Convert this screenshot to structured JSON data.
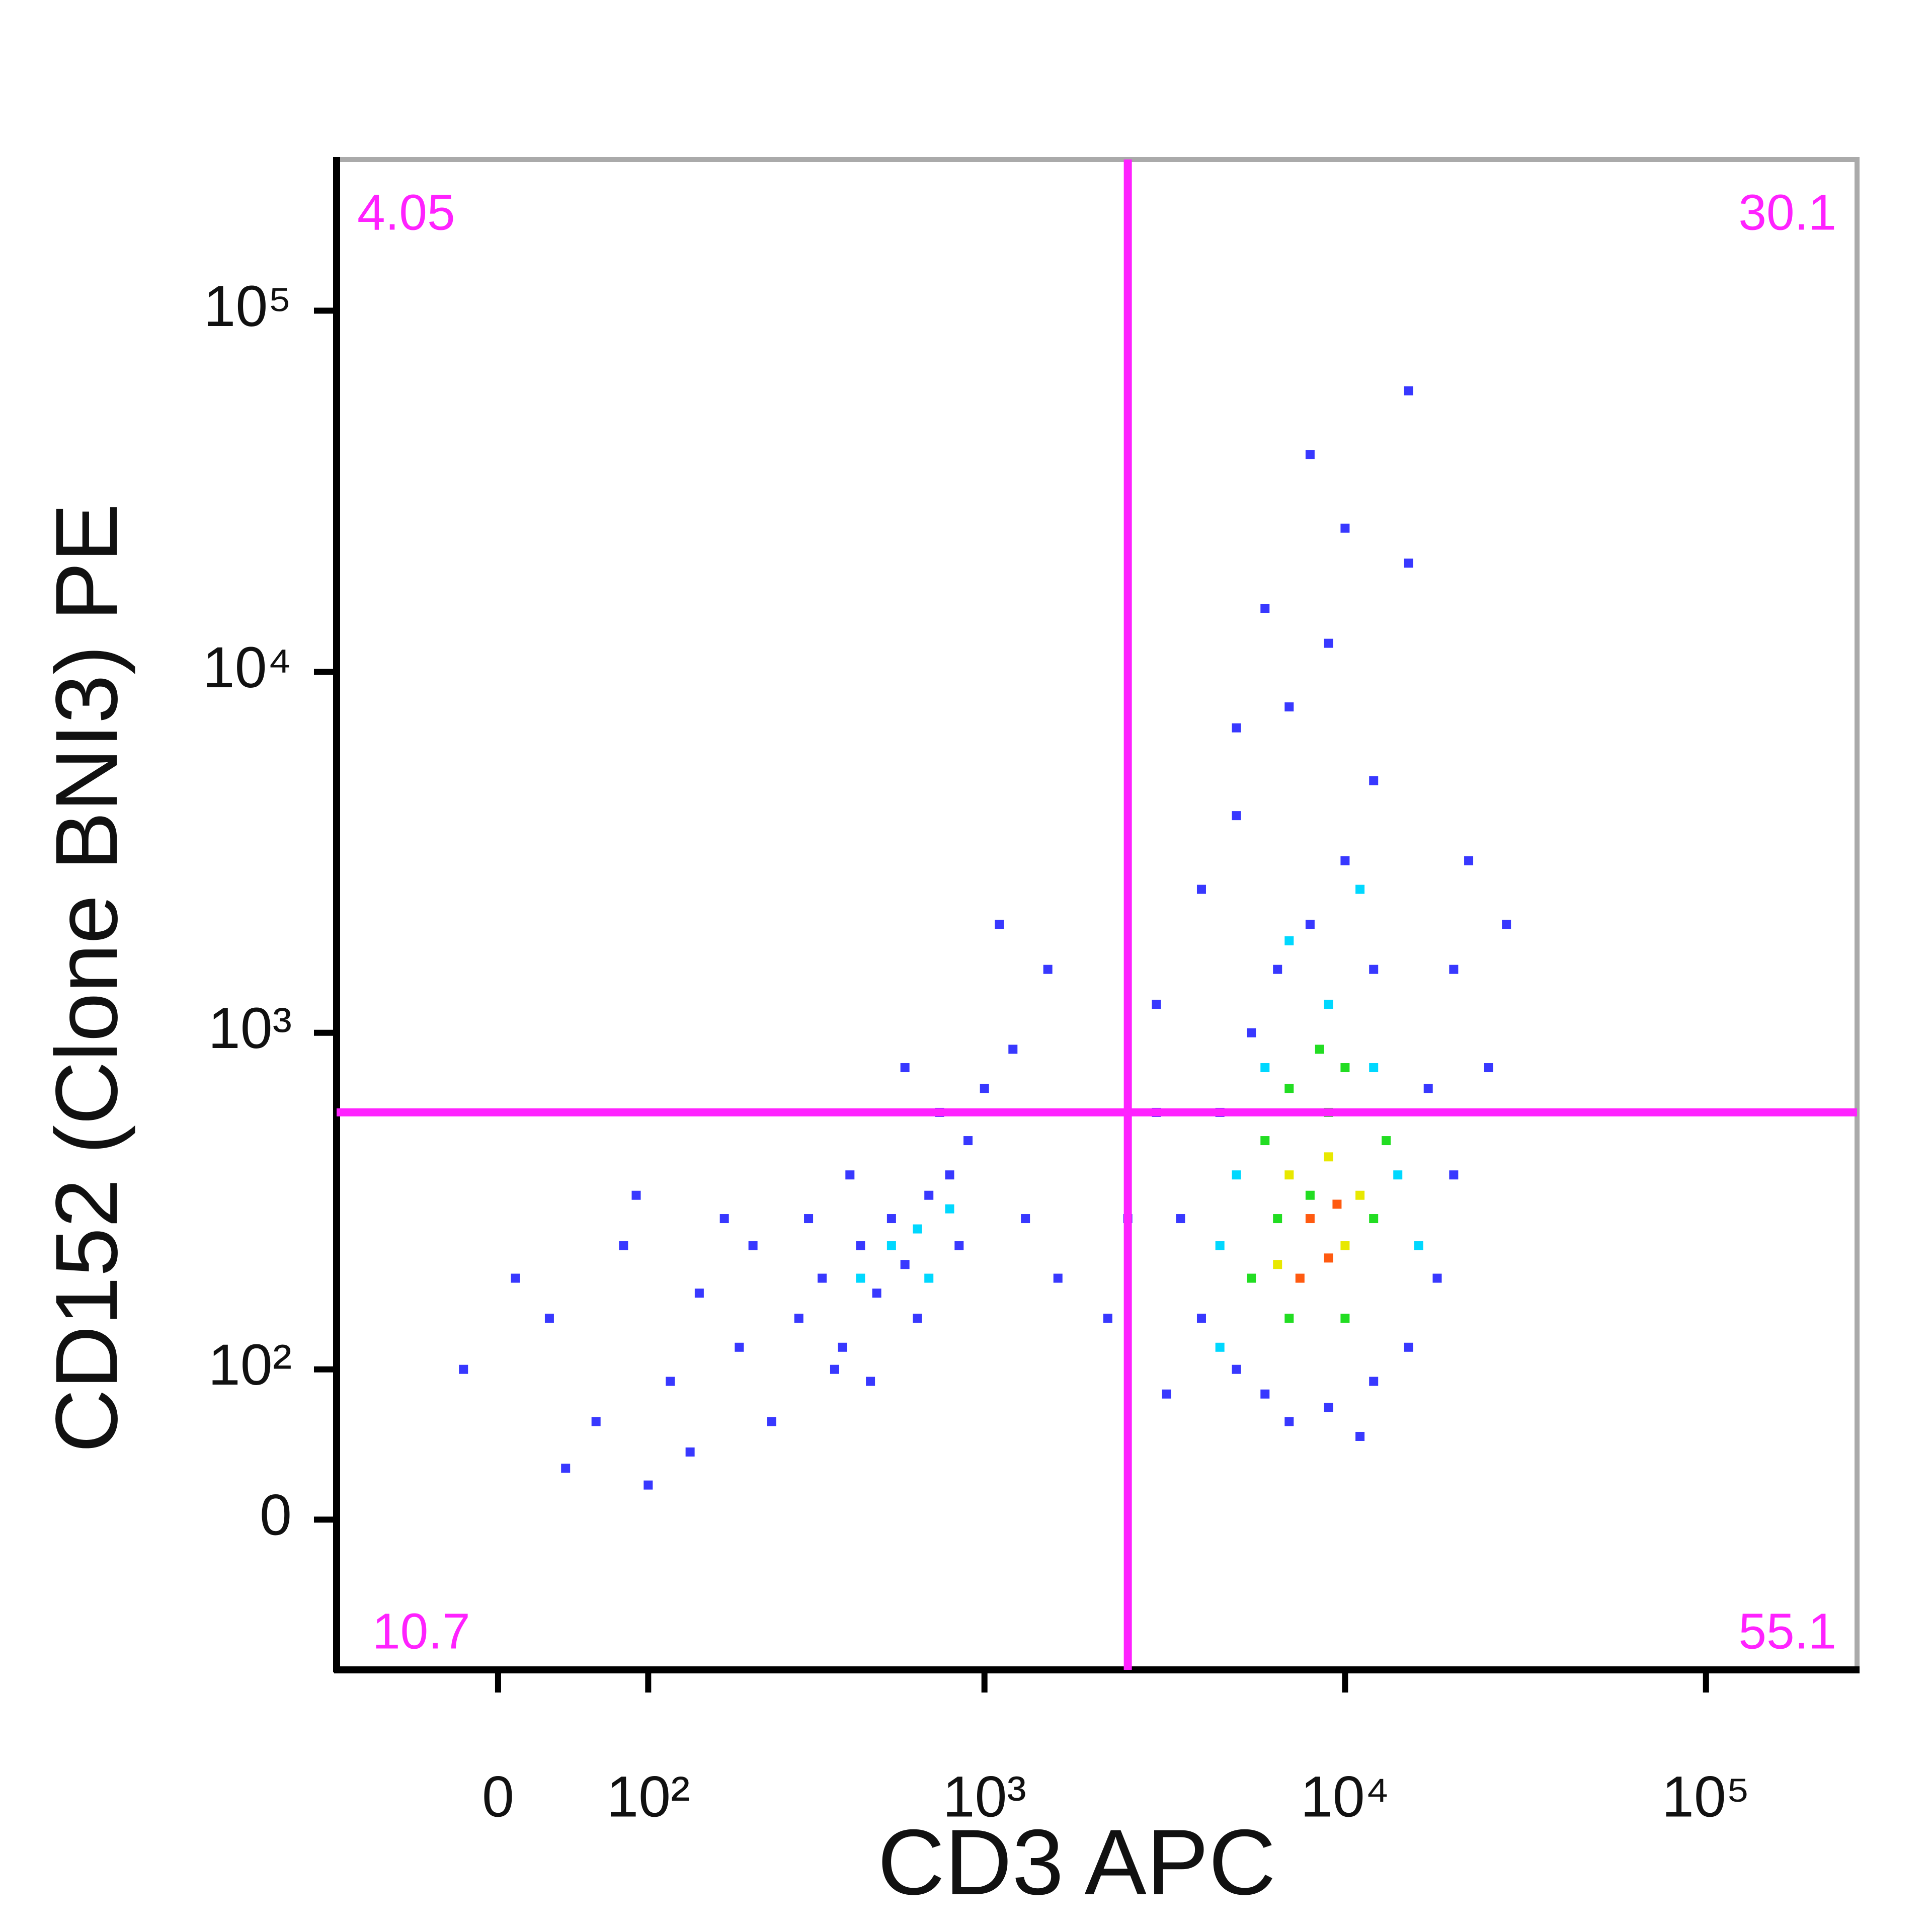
{
  "chart_data": {
    "type": "scatter",
    "xlabel": "CD3 APC",
    "ylabel": "CD152 (Clone BNI3) PE",
    "xscale": "biexponential",
    "yscale": "biexponential",
    "xlim": [
      -110,
      262144
    ],
    "ylim": [
      -100,
      262144
    ],
    "xticks": [
      0,
      {
        "value": 100,
        "label": "10²"
      },
      {
        "value": 1000,
        "label": "10³"
      },
      {
        "value": 10000,
        "label": "10⁴"
      },
      {
        "value": 100000,
        "label": "10⁵"
      }
    ],
    "yticks": [
      0,
      {
        "value": 100,
        "label": "10²"
      },
      {
        "value": 1000,
        "label": "10³"
      },
      {
        "value": 10000,
        "label": "10⁴"
      },
      {
        "value": 100000,
        "label": "10⁵"
      }
    ],
    "gate": {
      "x": 2500,
      "y": 600,
      "color": "#ff22ff"
    },
    "quadrant_labels": {
      "upper_left": 4.05,
      "upper_right": 30.1,
      "lower_left": 10.7,
      "lower_right": 55.1
    },
    "series": [
      {
        "color": "#3838ff",
        "x": [
          30,
          60,
          80,
          120,
          150,
          40,
          100,
          180,
          200,
          -20,
          10,
          140,
          250,
          90,
          220,
          300,
          350,
          400,
          450,
          500,
          550,
          600,
          700,
          800,
          380,
          480,
          650,
          900,
          1000,
          750,
          600,
          1200,
          1500,
          1100,
          320,
          420,
          850,
          1300,
          1600,
          4000,
          5000,
          6000,
          7000,
          9000,
          12000,
          15000,
          18000,
          20000,
          3500,
          4500,
          5500,
          6500,
          8000,
          10000,
          12000,
          7000,
          9000,
          15000,
          5000,
          4000,
          3000,
          20000,
          25000,
          8000,
          15000,
          10000,
          6000,
          12000,
          3000,
          2500,
          2200,
          3200,
          11000,
          17000,
          22000,
          28000,
          5000
        ],
        "y": [
          150,
          60,
          250,
          90,
          180,
          30,
          20,
          300,
          120,
          100,
          200,
          40,
          60,
          350,
          250,
          150,
          200,
          120,
          250,
          180,
          300,
          220,
          350,
          400,
          100,
          90,
          150,
          500,
          700,
          600,
          800,
          900,
          1500,
          2000,
          300,
          400,
          250,
          300,
          200,
          150,
          100,
          80,
          60,
          70,
          90,
          120,
          200,
          400,
          300,
          600,
          1000,
          1500,
          2000,
          3000,
          5000,
          8000,
          12000,
          20000,
          4000,
          2500,
          1200,
          1500,
          800,
          40000,
          60000,
          25000,
          15000,
          1500,
          600,
          300,
          150,
          80,
          50,
          700,
          3000,
          2000,
          7000
        ]
      },
      {
        "color": "#00d8ff",
        "x": [
          450,
          550,
          650,
          700,
          5000,
          6000,
          9000,
          12000,
          14000,
          4500,
          7000,
          11000,
          800,
          16000,
          4500
        ],
        "y": [
          200,
          250,
          280,
          200,
          400,
          800,
          1200,
          800,
          400,
          250,
          1800,
          2500,
          320,
          250,
          120
        ]
      },
      {
        "color": "#22dd22",
        "x": [
          6000,
          7000,
          8000,
          9000,
          10000,
          5500,
          12000,
          7000,
          10000,
          6500,
          13000,
          8500
        ],
        "y": [
          500,
          700,
          350,
          600,
          800,
          200,
          300,
          150,
          150,
          300,
          500,
          900
        ]
      },
      {
        "color": "#e8e800",
        "x": [
          7000,
          9000,
          10000,
          6500,
          11000
        ],
        "y": [
          400,
          450,
          250,
          220,
          350
        ]
      },
      {
        "color": "#ff5a10",
        "x": [
          8000,
          9000,
          7500,
          9500
        ],
        "y": [
          300,
          230,
          200,
          330
        ]
      }
    ]
  }
}
